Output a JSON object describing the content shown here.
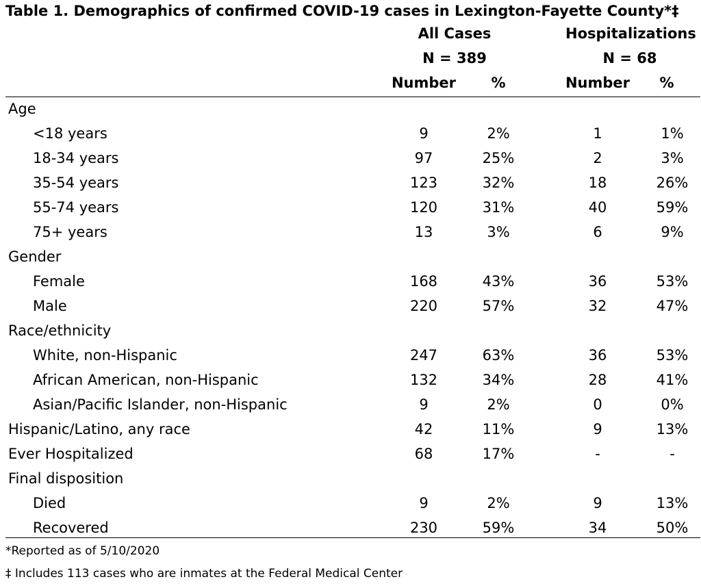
{
  "title": "Table 1. Demographics of confirmed COVID-19 cases in Lexington-Fayette County*‡",
  "groups": [
    {
      "name": "All Cases",
      "n": "N = 389"
    },
    {
      "name": "Hospitalizations",
      "n": "N = 68"
    }
  ],
  "columns": {
    "number": "Number",
    "pct": "%"
  },
  "rows": [
    {
      "label": "Age",
      "level": 0
    },
    {
      "label": "<18 years",
      "level": 1,
      "n1": "9",
      "p1": "2%",
      "n2": "1",
      "p2": "1%"
    },
    {
      "label": "18-34 years",
      "level": 1,
      "n1": "97",
      "p1": "25%",
      "n2": "2",
      "p2": "3%"
    },
    {
      "label": "35-54 years",
      "level": 1,
      "n1": "123",
      "p1": "32%",
      "n2": "18",
      "p2": "26%"
    },
    {
      "label": "55-74 years",
      "level": 1,
      "n1": "120",
      "p1": "31%",
      "n2": "40",
      "p2": "59%"
    },
    {
      "label": "75+ years",
      "level": 1,
      "n1": "13",
      "p1": "3%",
      "n2": "6",
      "p2": "9%"
    },
    {
      "label": "Gender",
      "level": 0
    },
    {
      "label": "Female",
      "level": 1,
      "n1": "168",
      "p1": "43%",
      "n2": "36",
      "p2": "53%"
    },
    {
      "label": "Male",
      "level": 1,
      "n1": "220",
      "p1": "57%",
      "n2": "32",
      "p2": "47%"
    },
    {
      "label": "Race/ethnicity",
      "level": 0
    },
    {
      "label": "White, non-Hispanic",
      "level": 1,
      "n1": "247",
      "p1": "63%",
      "n2": "36",
      "p2": "53%"
    },
    {
      "label": "African American, non-Hispanic",
      "level": 1,
      "n1": "132",
      "p1": "34%",
      "n2": "28",
      "p2": "41%"
    },
    {
      "label": "Asian/Pacific Islander, non-Hispanic",
      "level": 1,
      "n1": "9",
      "p1": "2%",
      "n2": "0",
      "p2": "0%"
    },
    {
      "label": "Hispanic/Latino, any race",
      "level": 0,
      "n1": "42",
      "p1": "11%",
      "n2": "9",
      "p2": "13%"
    },
    {
      "label": "Ever Hospitalized",
      "level": 0,
      "n1": "68",
      "p1": "17%",
      "n2": "-",
      "p2": "-"
    },
    {
      "label": "Final disposition",
      "level": 0
    },
    {
      "label": "Died",
      "level": 1,
      "n1": "9",
      "p1": "2%",
      "n2": "9",
      "p2": "13%"
    },
    {
      "label": "Recovered",
      "level": 1,
      "n1": "230",
      "p1": "59%",
      "n2": "34",
      "p2": "50%"
    }
  ],
  "footnotes": [
    "*Reported as of 5/10/2020",
    "‡ Includes 113 cases who are inmates at the Federal Medical Center"
  ]
}
